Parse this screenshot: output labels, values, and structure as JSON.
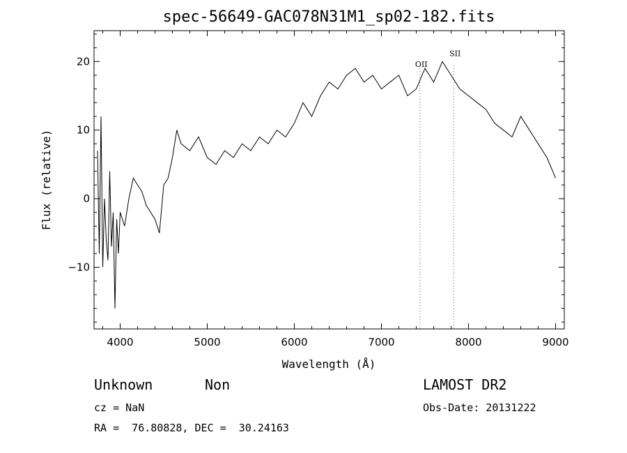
{
  "chart_data": {
    "type": "line",
    "title": "spec-56649-GAC078N31M1_sp02-182.fits",
    "xlabel": "Wavelength (Å)",
    "ylabel": "Flux (relative)",
    "xlim": [
      3700,
      9100
    ],
    "ylim": [
      -19,
      24.5
    ],
    "xticks": [
      4000,
      5000,
      6000,
      7000,
      8000,
      9000
    ],
    "yticks": [
      -10,
      0,
      10,
      20
    ],
    "ytick_labels": [
      "−10",
      "0",
      "10",
      "20"
    ],
    "grid": false,
    "series": [
      {
        "color": "#000000",
        "x": [
          3740,
          3760,
          3780,
          3800,
          3820,
          3840,
          3860,
          3880,
          3900,
          3920,
          3940,
          3960,
          3980,
          4000,
          4050,
          4100,
          4150,
          4200,
          4250,
          4300,
          4350,
          4400,
          4450,
          4500,
          4550,
          4600,
          4650,
          4700,
          4800,
          4900,
          5000,
          5100,
          5200,
          5300,
          5400,
          5500,
          5600,
          5700,
          5800,
          5900,
          6000,
          6100,
          6200,
          6300,
          6400,
          6500,
          6600,
          6700,
          6800,
          6900,
          7000,
          7100,
          7200,
          7300,
          7400,
          7500,
          7600,
          7700,
          7800,
          7900,
          8000,
          8100,
          8200,
          8300,
          8400,
          8500,
          8600,
          8700,
          8800,
          8900,
          9000
        ],
        "y": [
          7,
          -8,
          12,
          -10,
          0,
          -6,
          -9,
          4,
          -7,
          -2,
          -16,
          -3,
          -8,
          -2,
          -4,
          0,
          3,
          2,
          1,
          -1,
          -2,
          -3,
          -5,
          2,
          3,
          6,
          10,
          8,
          7,
          9,
          6,
          5,
          7,
          6,
          8,
          7,
          9,
          8,
          10,
          9,
          11,
          14,
          12,
          15,
          17,
          16,
          18,
          19,
          17,
          18,
          16,
          17,
          18,
          15,
          16,
          19,
          17,
          20,
          18,
          16,
          15,
          14,
          13,
          11,
          10,
          9,
          12,
          10,
          8,
          6,
          3
        ]
      }
    ],
    "annotations": [
      {
        "label": "OII",
        "x": 7442,
        "y": 19.2
      },
      {
        "label": "SII",
        "x": 7830,
        "y": 20.8
      }
    ],
    "line_markers_x": [
      7442,
      7830
    ]
  },
  "info": {
    "class": "Unknown",
    "subclass": "Non",
    "survey": "LAMOST DR2",
    "cz": "cz = NaN",
    "obs_date": "Obs-Date: 20131222",
    "coords": "RA =  76.80828, DEC =  30.24163"
  }
}
